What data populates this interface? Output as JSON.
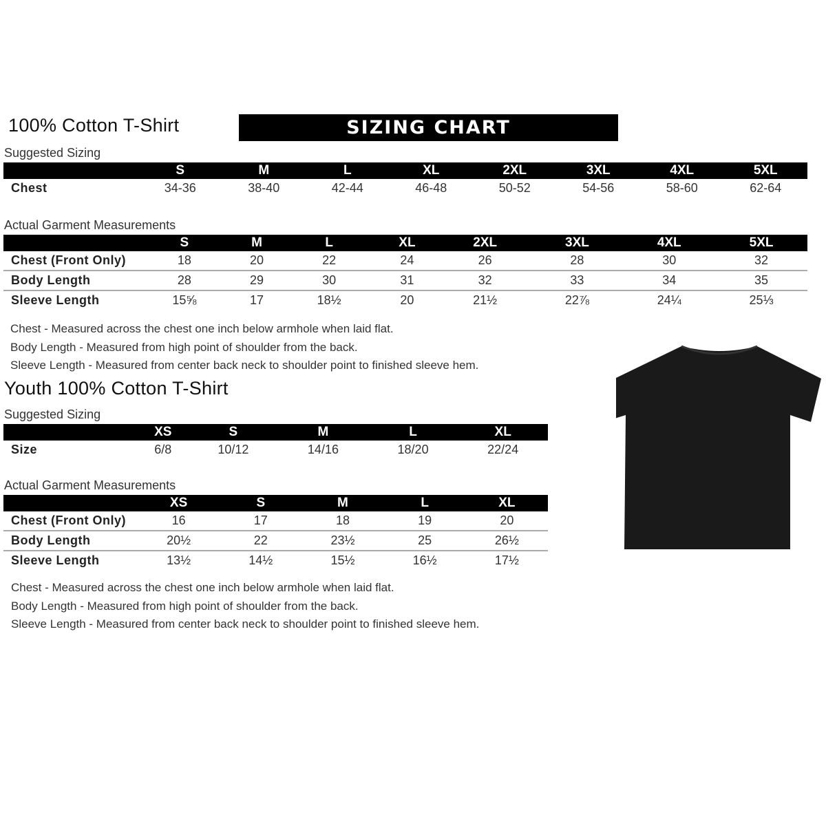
{
  "banner": "SIZING CHART",
  "adult": {
    "title": "100% Cotton T-Shirt",
    "suggested_label": "Suggested Sizing",
    "sizes": [
      "S",
      "M",
      "L",
      "XL",
      "2XL",
      "3XL",
      "4XL",
      "5XL"
    ],
    "suggested_rows": [
      {
        "label": "Chest",
        "values": [
          "34-36",
          "38-40",
          "42-44",
          "46-48",
          "50-52",
          "54-56",
          "58-60",
          "62-64"
        ]
      }
    ],
    "actual_label": "Actual Garment Measurements",
    "actual_rows": [
      {
        "label": "Chest (Front Only)",
        "values": [
          "18",
          "20",
          "22",
          "24",
          "26",
          "28",
          "30",
          "32"
        ]
      },
      {
        "label": "Body Length",
        "values": [
          "28",
          "29",
          "30",
          "31",
          "32",
          "33",
          "34",
          "35"
        ]
      },
      {
        "label": "Sleeve Length",
        "values": [
          "15⅝",
          "17",
          "18½",
          "20",
          "21½",
          "22⅞",
          "24¼",
          "25⅓"
        ]
      }
    ],
    "notes": [
      "Chest - Measured across the chest one inch below armhole when laid flat.",
      "Body Length - Measured from high point of shoulder from the back.",
      "Sleeve Length - Measured from center back neck to shoulder point to finished sleeve hem."
    ]
  },
  "youth": {
    "title": "Youth 100% Cotton T-Shirt",
    "suggested_label": "Suggested Sizing",
    "sizes": [
      "XS",
      "S",
      "M",
      "L",
      "XL"
    ],
    "suggested_rows": [
      {
        "label": "Size",
        "values": [
          "6/8",
          "10/12",
          "14/16",
          "18/20",
          "22/24"
        ]
      }
    ],
    "actual_label": "Actual Garment Measurements",
    "actual_rows": [
      {
        "label": "Chest (Front Only)",
        "values": [
          "16",
          "17",
          "18",
          "19",
          "20"
        ]
      },
      {
        "label": "Body Length",
        "values": [
          "20½",
          "22",
          "23½",
          "25",
          "26½"
        ]
      },
      {
        "label": "Sleeve Length",
        "values": [
          "13½",
          "14½",
          "15½",
          "16½",
          "17½"
        ]
      }
    ],
    "notes": [
      "Chest - Measured across the chest one inch below armhole when laid flat.",
      "Body Length - Measured from high point of shoulder from the back.",
      "Sleeve Length - Measured from center back neck to shoulder point to finished sleeve hem."
    ]
  },
  "tshirt_color": "#1a1a1a"
}
